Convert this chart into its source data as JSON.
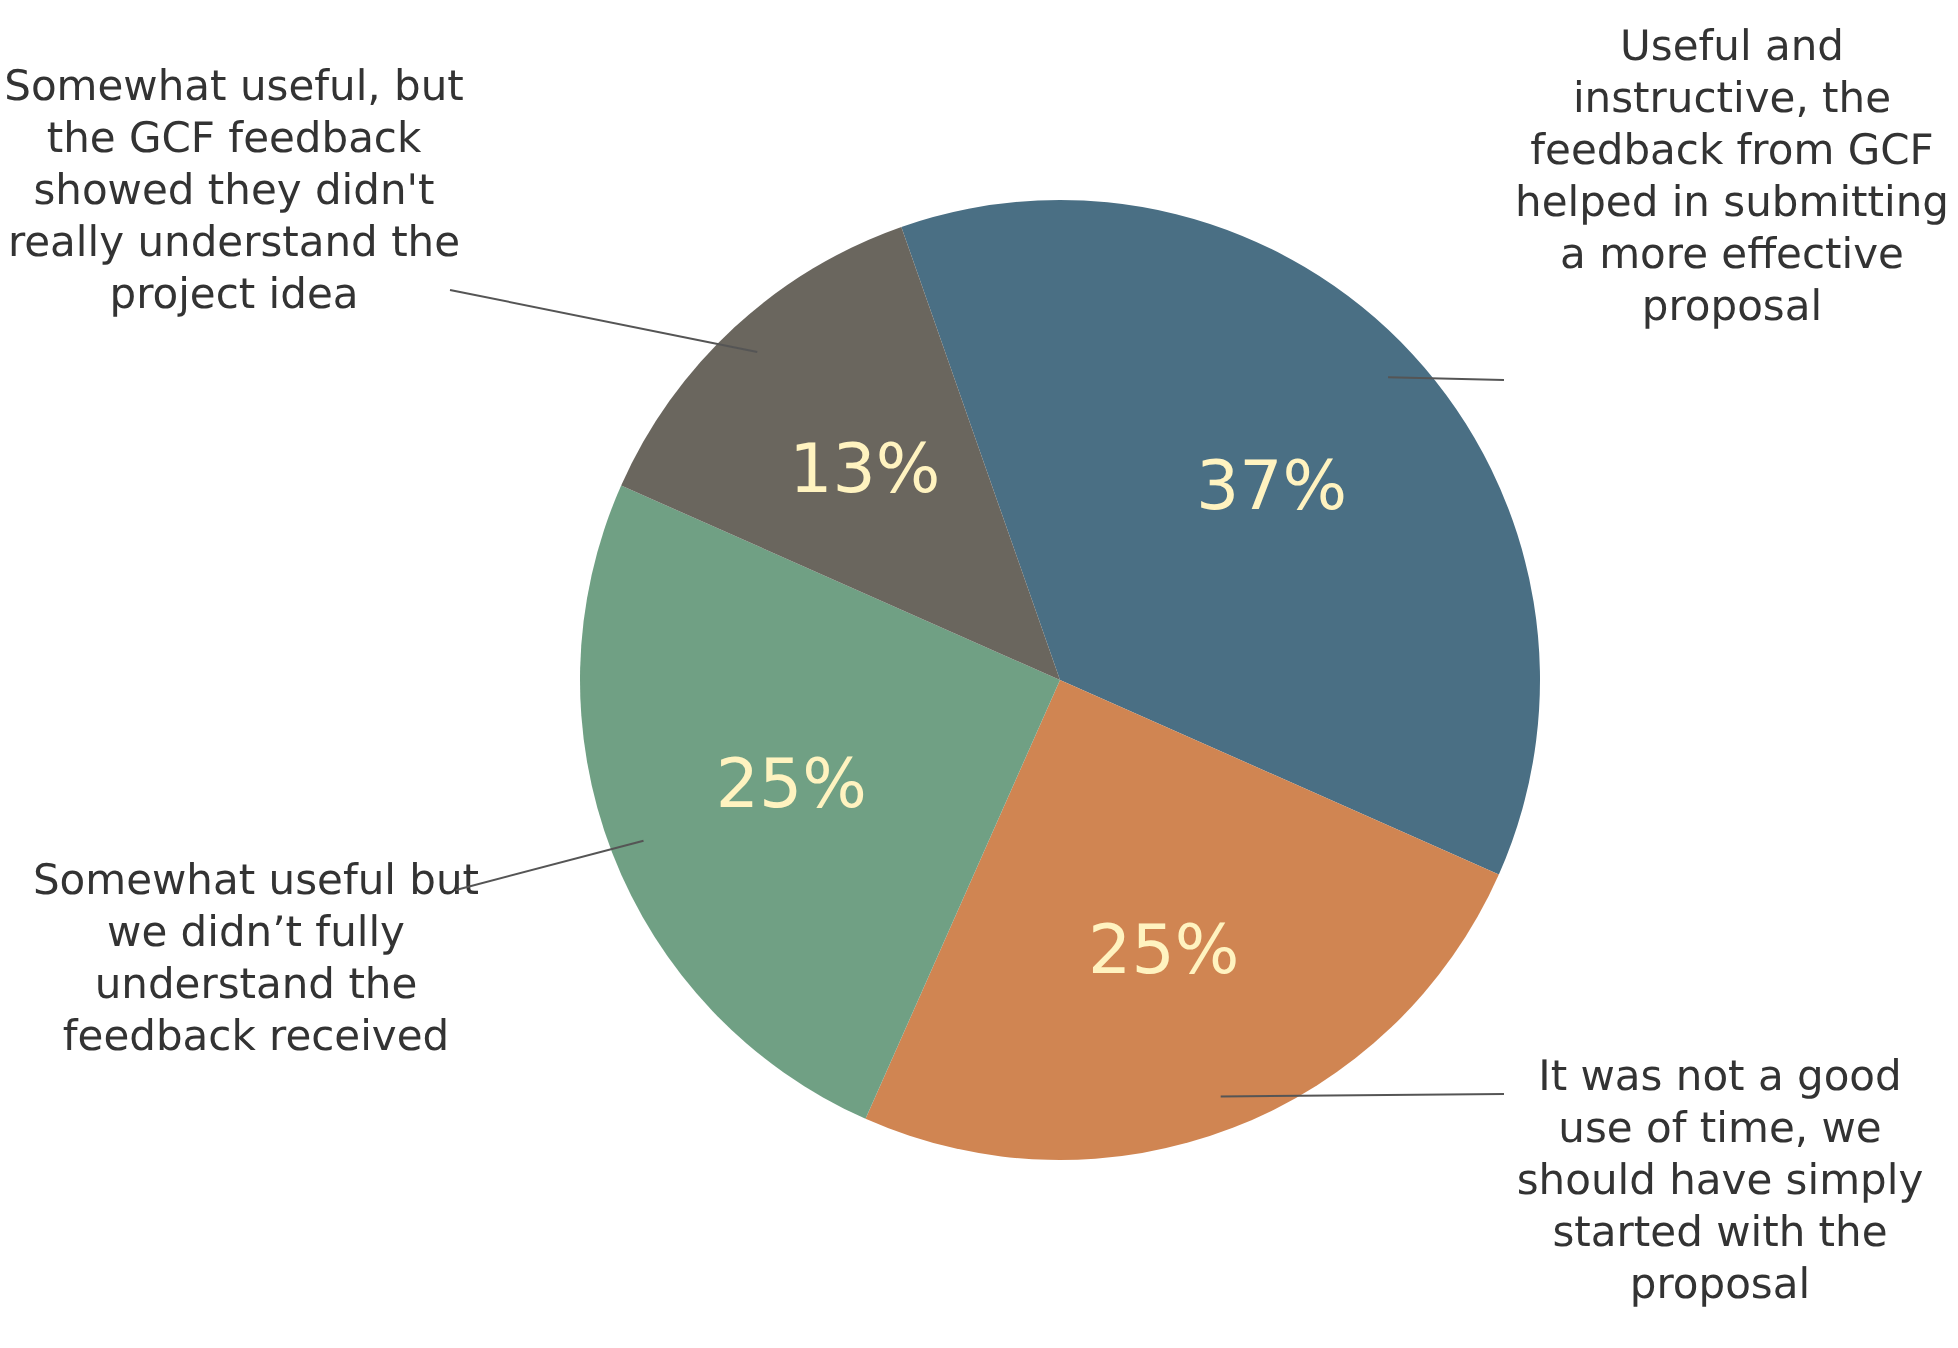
{
  "chart_data": {
    "type": "pie",
    "categories": [
      "Useful and instructive, the feedback from GCF helped in submitting a more effective proposal",
      "It was not a good use of time, we should have simply started with the proposal",
      "Somewhat useful but we didn’t fully understand the feedback received",
      "Somewhat useful, but the GCF feedback showed they didn't really understand the project idea"
    ],
    "values": [
      37,
      25,
      25,
      13
    ],
    "colors": [
      "#4a6f84",
      "#d08552",
      "#70a084",
      "#6a665e"
    ],
    "value_labels": [
      "37%",
      "25%",
      "25%",
      "13%"
    ],
    "legend": false
  }
}
